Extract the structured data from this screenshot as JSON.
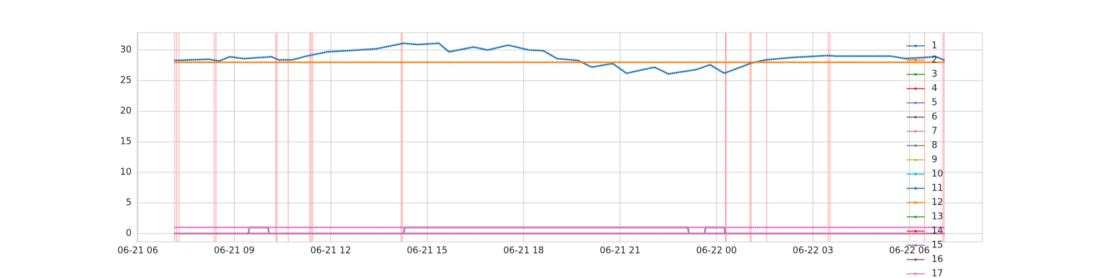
{
  "chart_data": {
    "type": "line",
    "xlim": [
      5.98,
      32.27
    ],
    "ylim": [
      -1.36,
      32.84
    ],
    "xticks": [
      {
        "value": 6,
        "label": "06-21 06"
      },
      {
        "value": 9,
        "label": "06-21 09"
      },
      {
        "value": 12,
        "label": "06-21 12"
      },
      {
        "value": 15,
        "label": "06-21 15"
      },
      {
        "value": 18,
        "label": "06-21 18"
      },
      {
        "value": 21,
        "label": "06-21 21"
      },
      {
        "value": 24,
        "label": "06-22 00"
      },
      {
        "value": 27,
        "label": "06-22 03"
      },
      {
        "value": 30,
        "label": "06-22 06"
      }
    ],
    "yticks": [
      0,
      5,
      10,
      15,
      20,
      25,
      30
    ],
    "grid": true,
    "legend": "right",
    "events": [
      7.15,
      7.21,
      7.28,
      8.38,
      8.43,
      10.29,
      10.33,
      10.68,
      11.35,
      11.39,
      11.44,
      14.19,
      14.23,
      24.28,
      24.3,
      25.04,
      25.08,
      25.56,
      27.47,
      27.53,
      30.47,
      31.04,
      31.08
    ],
    "event_color": "#ff9999",
    "series": [
      {
        "name": "1",
        "color": "#1f77b4",
        "x": [
          7.13,
          8.21,
          8.53,
          8.86,
          9.29,
          10.16,
          10.38,
          10.81,
          11.24,
          11.89,
          12.54,
          13.41,
          14.27,
          14.71,
          15.36,
          15.68,
          16.44,
          16.88,
          17.52,
          18.17,
          18.61,
          19.04,
          19.69,
          20.12,
          20.77,
          21.2,
          22.07,
          22.5,
          23.37,
          23.8,
          24.24,
          25.1,
          25.54,
          26.4,
          27.49,
          27.7,
          29.43,
          29.87,
          30.84,
          31.1
        ],
        "values": [
          28.3,
          28.5,
          28.2,
          28.9,
          28.6,
          28.9,
          28.4,
          28.4,
          29.0,
          29.7,
          29.9,
          30.2,
          31.1,
          30.9,
          31.1,
          29.7,
          30.5,
          30.0,
          30.8,
          30.0,
          29.9,
          28.6,
          28.3,
          27.2,
          27.8,
          26.2,
          27.2,
          26.1,
          26.8,
          27.6,
          26.2,
          27.9,
          28.4,
          28.8,
          29.1,
          29.0,
          29.0,
          28.6,
          28.9,
          28.3
        ]
      },
      {
        "name": "2",
        "color": "#ff7f0e",
        "x": [
          7.13,
          31.1
        ],
        "values": [
          28,
          28
        ]
      },
      {
        "name": "3",
        "color": "#2ca02c",
        "x": [
          7.13,
          31.1
        ],
        "values": [
          0,
          0
        ]
      },
      {
        "name": "4",
        "color": "#d62728",
        "x": [
          7.13,
          31.1
        ],
        "values": [
          0,
          0
        ]
      },
      {
        "name": "5",
        "color": "#9467bd",
        "x": [
          7.13,
          9.44,
          9.47,
          10.05,
          10.08,
          14.27,
          14.3,
          23.11,
          23.14,
          23.63,
          23.66,
          24.24,
          24.27,
          31.1
        ],
        "values": [
          0,
          0,
          1,
          1,
          0,
          0,
          1,
          1,
          0,
          0,
          1,
          1,
          0,
          0
        ]
      },
      {
        "name": "6",
        "color": "#8c564b",
        "x": [
          7.13,
          31.1
        ],
        "values": [
          0,
          0
        ]
      },
      {
        "name": "7",
        "color": "#e377c2",
        "x": [
          7.13,
          31.1
        ],
        "values": [
          1,
          1
        ]
      },
      {
        "name": "8",
        "color": "#7f7f7f",
        "x": [
          7.13,
          31.1
        ],
        "values": [
          0,
          0
        ]
      },
      {
        "name": "9",
        "color": "#bcbd22",
        "x": [
          7.13,
          31.1
        ],
        "values": [
          0,
          0
        ]
      },
      {
        "name": "10",
        "color": "#17becf",
        "x": [
          7.13,
          31.1
        ],
        "values": [
          0,
          0
        ]
      },
      {
        "name": "11",
        "color": "#1f77b4",
        "x": [
          7.13,
          31.1
        ],
        "values": [
          0,
          0
        ]
      },
      {
        "name": "12",
        "color": "#ff7f0e",
        "x": [
          7.13,
          31.1
        ],
        "values": [
          0,
          0
        ]
      },
      {
        "name": "13",
        "color": "#2ca02c",
        "x": [
          7.13,
          31.1
        ],
        "values": [
          0,
          0
        ]
      },
      {
        "name": "14",
        "color": "#d62728",
        "x": [
          7.13,
          31.1
        ],
        "values": [
          0,
          0
        ]
      },
      {
        "name": "15",
        "color": "#9467bd",
        "x": [
          7.13,
          31.1
        ],
        "values": [
          0,
          0
        ]
      },
      {
        "name": "16",
        "color": "#8c564b",
        "x": [
          7.13,
          31.1
        ],
        "values": [
          0,
          0
        ]
      },
      {
        "name": "17",
        "color": "#e377c2",
        "x": [
          7.13,
          31.1
        ],
        "values": [
          0,
          0
        ]
      }
    ]
  }
}
